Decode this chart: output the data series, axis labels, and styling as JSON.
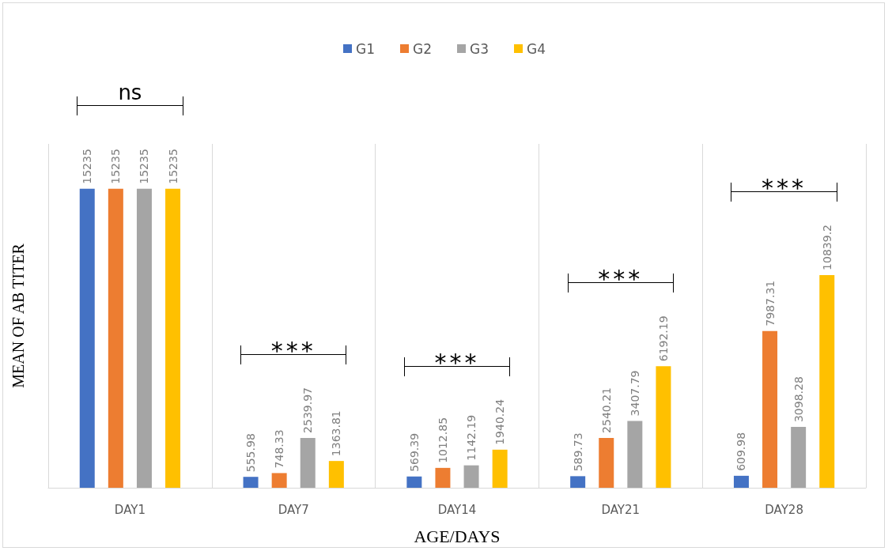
{
  "chart_data": {
    "type": "bar",
    "xlabel": "AGE/DAYS",
    "ylabel": "MEAN OF AB TITER",
    "categories": [
      "DAY1",
      "DAY7",
      "DAY14",
      "DAY21",
      "DAY28"
    ],
    "series": [
      {
        "name": "G1",
        "color": "#4472c4",
        "values": [
          15235,
          555.98,
          569.39,
          589.73,
          609.98
        ]
      },
      {
        "name": "G2",
        "color": "#ed7d31",
        "values": [
          15235,
          748.33,
          1012.85,
          2540.21,
          7987.31
        ]
      },
      {
        "name": "G3",
        "color": "#a5a5a5",
        "values": [
          15235,
          2539.97,
          1142.19,
          3407.79,
          3098.28
        ]
      },
      {
        "name": "G4",
        "color": "#ffc000",
        "values": [
          15235,
          1363.81,
          1940.24,
          6192.19,
          10839.2
        ]
      }
    ],
    "data_labels": true,
    "grid": "x",
    "legend": "top",
    "annotations": [
      "ns",
      "***",
      "***",
      "***",
      "***"
    ]
  }
}
